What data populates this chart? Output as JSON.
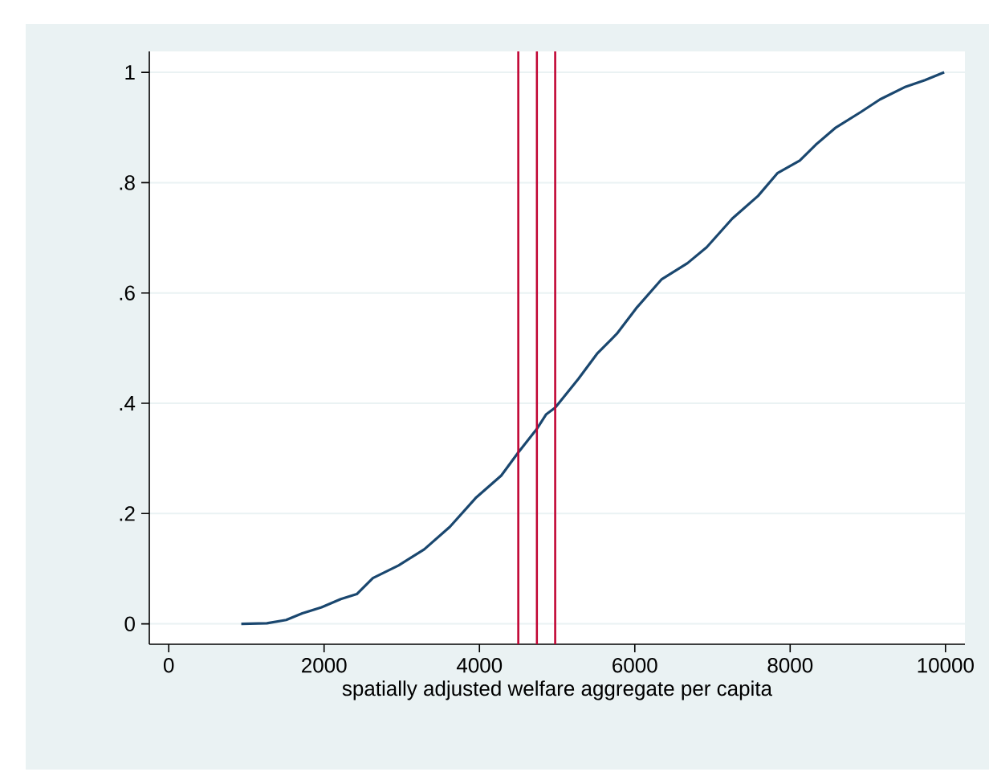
{
  "chart_data": {
    "type": "line",
    "xlabel": "spatially adjusted welfare aggregate per capita",
    "xlim": [
      -250,
      10250
    ],
    "ylim": [
      -0.037,
      1.038
    ],
    "xticks": [
      0,
      2000,
      4000,
      6000,
      8000,
      10000
    ],
    "yticks": [
      {
        "value": 0,
        "label": "0"
      },
      {
        "value": 0.2,
        "label": ".2"
      },
      {
        "value": 0.4,
        "label": ".4"
      },
      {
        "value": 0.6,
        "label": ".6"
      },
      {
        "value": 0.8,
        "label": ".8"
      },
      {
        "value": 1,
        "label": "1"
      }
    ],
    "grid": "y",
    "series": [
      {
        "color": "#1a476f",
        "x": [
          934,
          1264,
          1512,
          1719,
          1967,
          2215,
          2421,
          2628,
          2959,
          3289,
          3620,
          3950,
          4281,
          4496,
          4736,
          4860,
          4975,
          5273,
          5521,
          5769,
          6017,
          6347,
          6678,
          6926,
          7256,
          7587,
          7835,
          8124,
          8331,
          8579,
          8909,
          9157,
          9488,
          9736,
          9983
        ],
        "values": [
          0,
          0.001,
          0.007,
          0.019,
          0.03,
          0.045,
          0.054,
          0.083,
          0.106,
          0.135,
          0.176,
          0.228,
          0.269,
          0.31,
          0.353,
          0.38,
          0.392,
          0.444,
          0.491,
          0.526,
          0.572,
          0.625,
          0.654,
          0.683,
          0.735,
          0.776,
          0.817,
          0.84,
          0.869,
          0.899,
          0.928,
          0.951,
          0.974,
          0.986,
          1.0
        ]
      }
    ],
    "ref_lines": [
      {
        "axis": "x",
        "value": 4500,
        "color": "#c10534"
      },
      {
        "axis": "x",
        "value": 4740,
        "color": "#c10534"
      },
      {
        "axis": "x",
        "value": 4975,
        "color": "#c10534"
      }
    ]
  }
}
